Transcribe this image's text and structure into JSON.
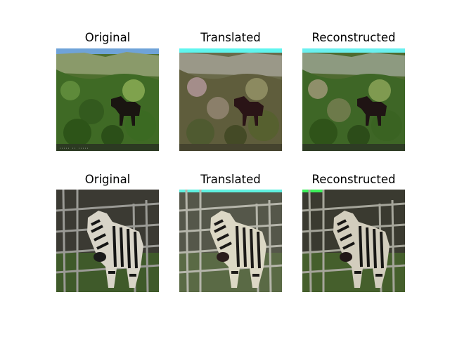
{
  "rows": [
    {
      "panels": [
        {
          "title": "Original"
        },
        {
          "title": "Translated"
        },
        {
          "title": "Reconstructed"
        }
      ]
    },
    {
      "panels": [
        {
          "title": "Original"
        },
        {
          "title": "Translated"
        },
        {
          "title": "Reconstructed"
        }
      ]
    }
  ]
}
